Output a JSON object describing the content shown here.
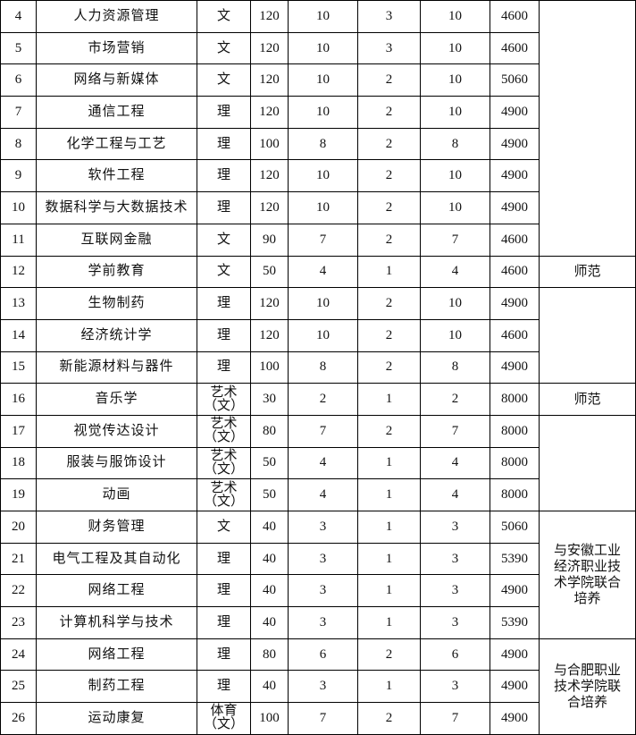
{
  "table": {
    "rows": [
      [
        "4",
        "人力资源管理",
        "文",
        "120",
        "10",
        "3",
        "10",
        "4600"
      ],
      [
        "5",
        "市场营销",
        "文",
        "120",
        "10",
        "3",
        "10",
        "4600"
      ],
      [
        "6",
        "网络与新媒体",
        "文",
        "120",
        "10",
        "2",
        "10",
        "5060"
      ],
      [
        "7",
        "通信工程",
        "理",
        "120",
        "10",
        "2",
        "10",
        "4900"
      ],
      [
        "8",
        "化学工程与工艺",
        "理",
        "100",
        "8",
        "2",
        "8",
        "4900"
      ],
      [
        "9",
        "软件工程",
        "理",
        "120",
        "10",
        "2",
        "10",
        "4900"
      ],
      [
        "10",
        "数据科学与大数据技术",
        "理",
        "120",
        "10",
        "2",
        "10",
        "4900"
      ],
      [
        "11",
        "互联网金融",
        "文",
        "90",
        "7",
        "2",
        "7",
        "4600"
      ],
      [
        "12",
        "学前教育",
        "文",
        "50",
        "4",
        "1",
        "4",
        "4600"
      ],
      [
        "13",
        "生物制药",
        "理",
        "120",
        "10",
        "2",
        "10",
        "4900"
      ],
      [
        "14",
        "经济统计学",
        "理",
        "120",
        "10",
        "2",
        "10",
        "4600"
      ],
      [
        "15",
        "新能源材料与器件",
        "理",
        "100",
        "8",
        "2",
        "8",
        "4900"
      ],
      [
        "16",
        "音乐学",
        "艺术\n（文）",
        "30",
        "2",
        "1",
        "2",
        "8000"
      ],
      [
        "17",
        "视觉传达设计",
        "艺术\n（文）",
        "80",
        "7",
        "2",
        "7",
        "8000"
      ],
      [
        "18",
        "服装与服饰设计",
        "艺术\n（文）",
        "50",
        "4",
        "1",
        "4",
        "8000"
      ],
      [
        "19",
        "动画",
        "艺术\n（文）",
        "50",
        "4",
        "1",
        "4",
        "8000"
      ],
      [
        "20",
        "财务管理",
        "文",
        "40",
        "3",
        "1",
        "3",
        "5060"
      ],
      [
        "21",
        "电气工程及其自动化",
        "理",
        "40",
        "3",
        "1",
        "3",
        "5390"
      ],
      [
        "22",
        "网络工程",
        "理",
        "40",
        "3",
        "1",
        "3",
        "4900"
      ],
      [
        "23",
        "计算机科学与技术",
        "理",
        "40",
        "3",
        "1",
        "3",
        "5390"
      ],
      [
        "24",
        "网络工程",
        "理",
        "80",
        "6",
        "2",
        "6",
        "4900"
      ],
      [
        "25",
        "制药工程",
        "理",
        "40",
        "3",
        "1",
        "3",
        "4900"
      ],
      [
        "26",
        "运动康复",
        "体育\n（文）",
        "100",
        "7",
        "2",
        "7",
        "4900"
      ]
    ],
    "notes": [
      "师范",
      "师范",
      "与安徽工业\n经济职业技\n术学院联合\n培养",
      "与合肥职业\n技术学院联\n合培养"
    ]
  }
}
